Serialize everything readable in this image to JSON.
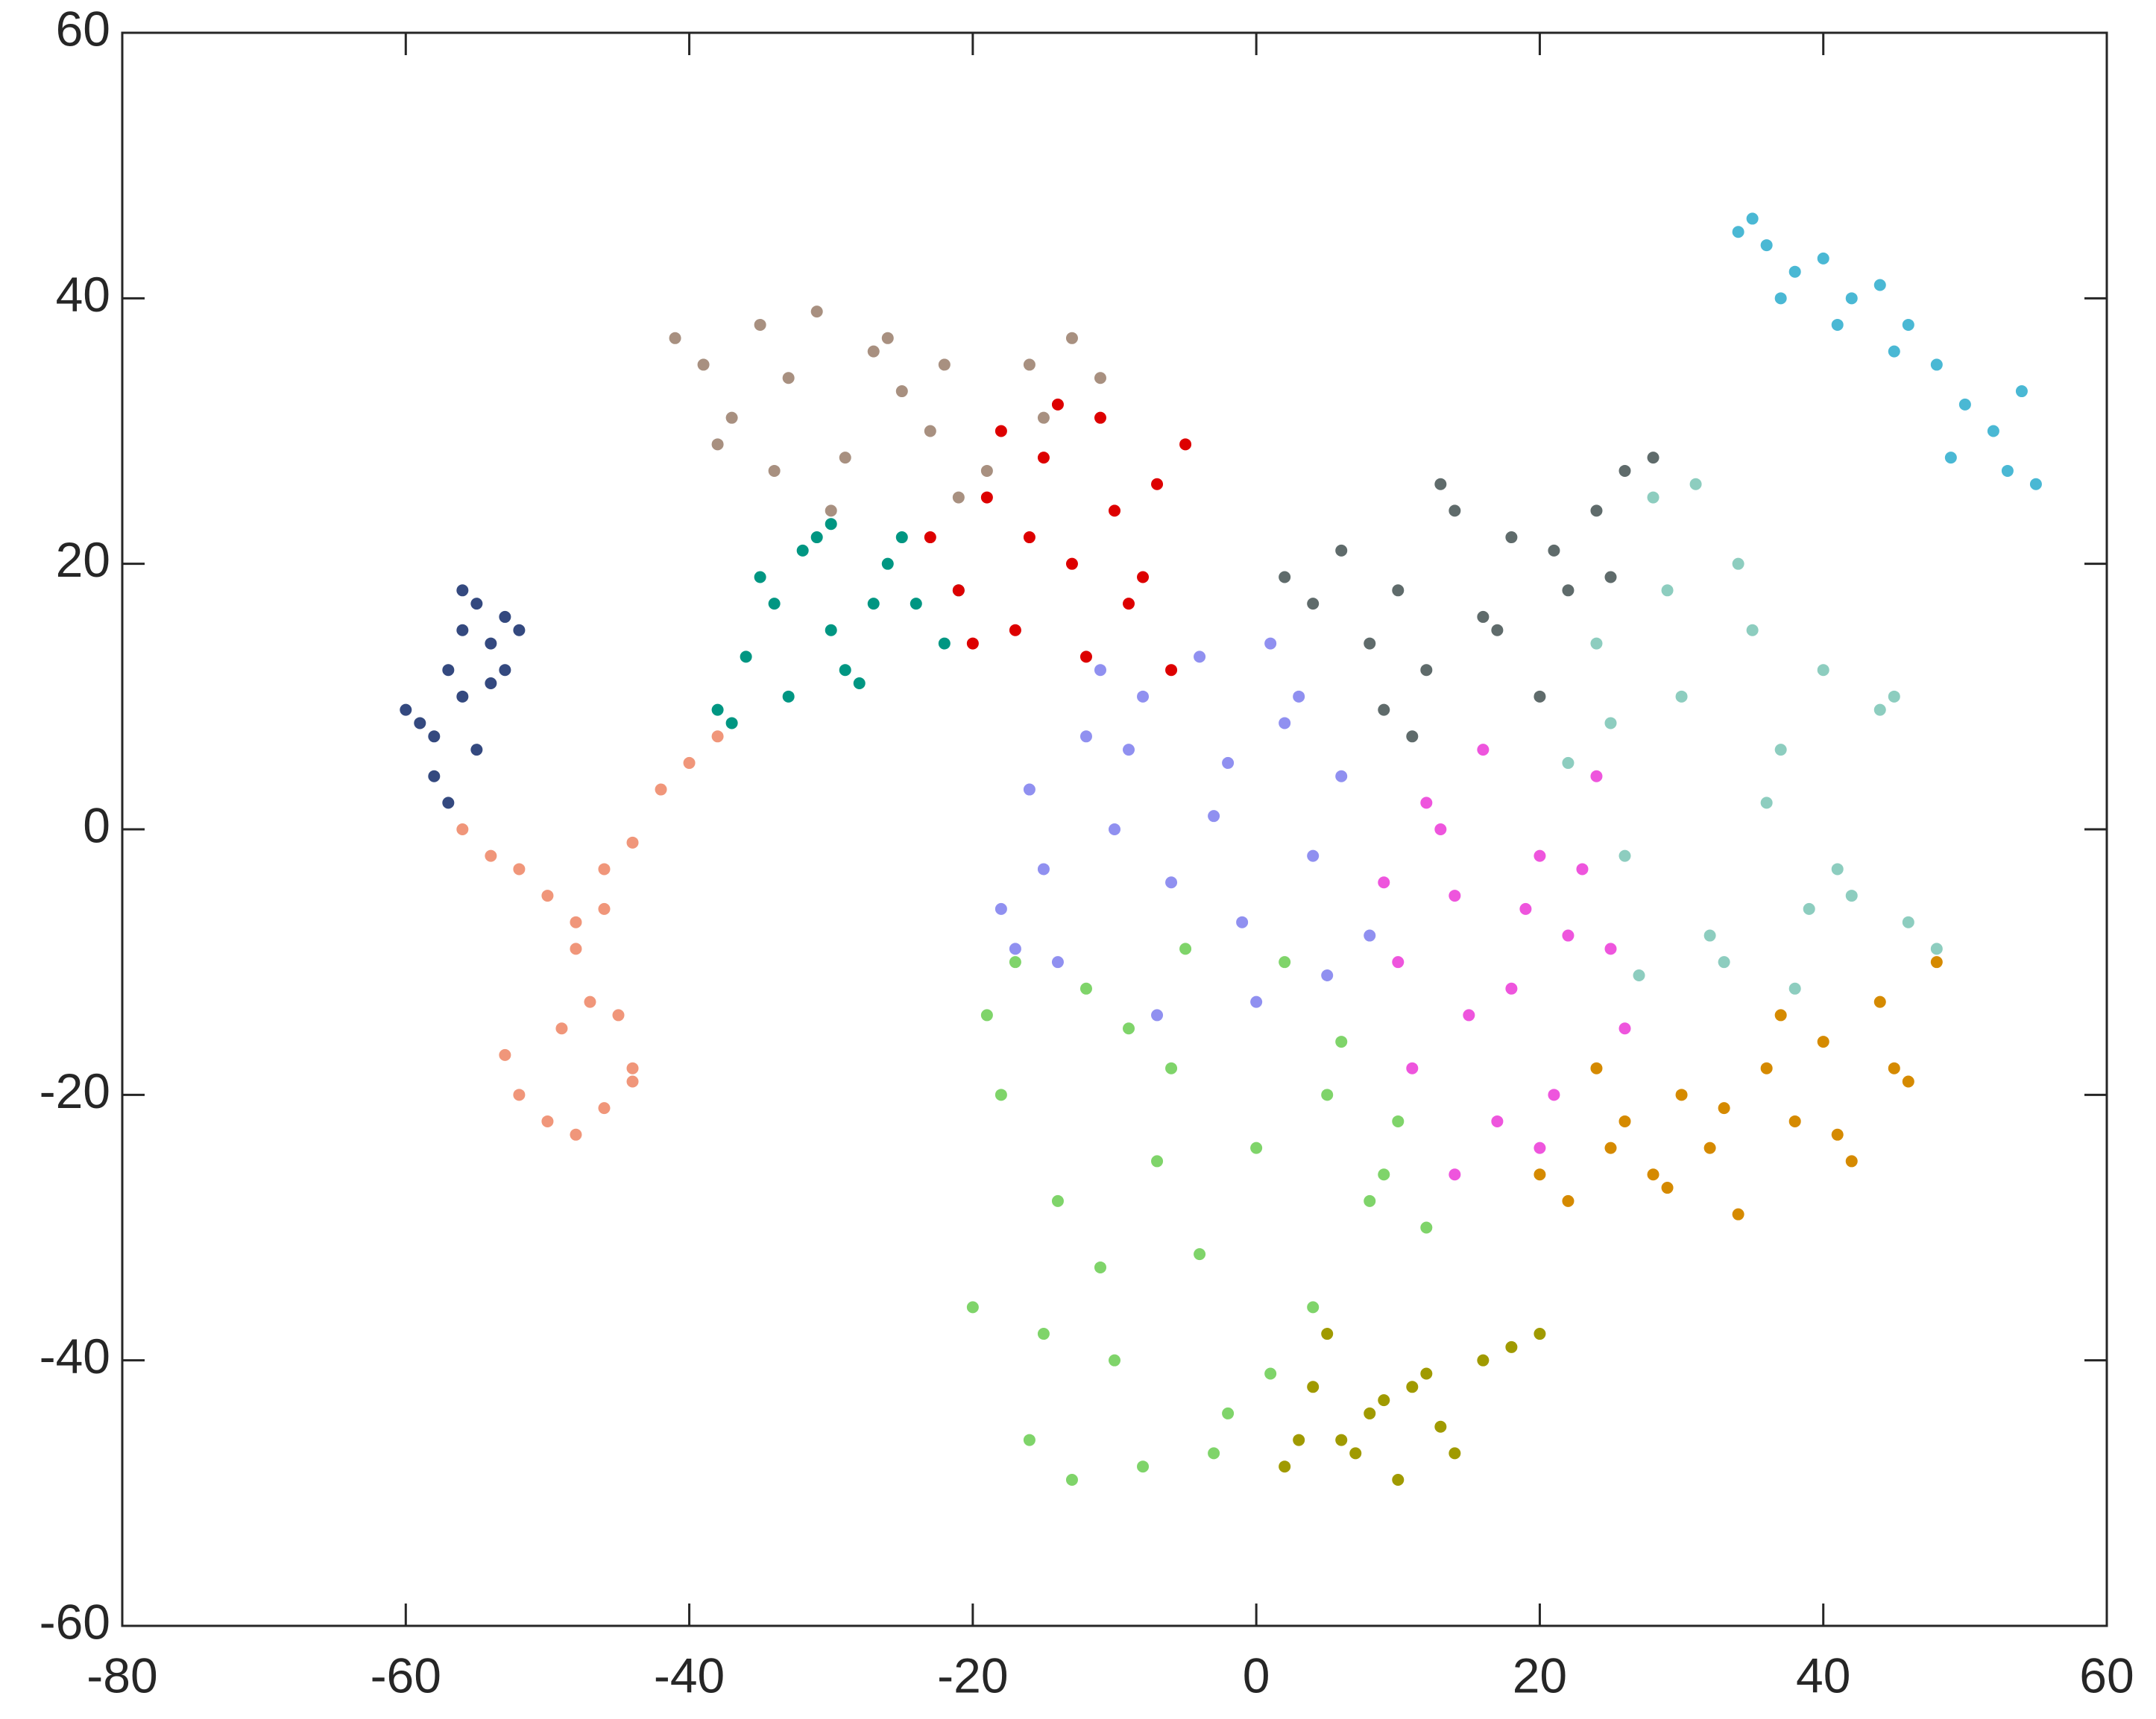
{
  "chart_data": {
    "type": "scatter",
    "xlim": [
      -80,
      60
    ],
    "ylim": [
      -60,
      60
    ],
    "xticks": [
      -80,
      -60,
      -40,
      -20,
      0,
      20,
      40,
      60
    ],
    "yticks": [
      -60,
      -40,
      -20,
      0,
      20,
      40,
      60
    ],
    "series": [
      {
        "color": "#34497f",
        "x": [
          -60,
          -58,
          -57,
          -56,
          -55,
          -54,
          -53,
          -52,
          -56,
          -58,
          -57,
          -55,
          -53,
          -59,
          -54,
          -56
        ],
        "values": [
          9,
          7,
          12,
          15,
          17,
          14,
          16,
          15,
          10,
          4,
          2,
          6,
          12,
          8,
          11,
          18
        ]
      },
      {
        "color": "#f0967a",
        "x": [
          -56,
          -54,
          -52,
          -50,
          -48,
          -46,
          -44,
          -42,
          -40,
          -38,
          -48,
          -46,
          -49,
          -47,
          -45,
          -44,
          -52,
          -50,
          -48,
          -46,
          -44,
          -53
        ],
        "values": [
          0,
          -2,
          -3,
          -5,
          -7,
          -3,
          -1,
          3,
          5,
          7,
          -9,
          -6,
          -15,
          -13,
          -14,
          -18,
          -20,
          -22,
          -23,
          -21,
          -19,
          -17
        ]
      },
      {
        "color": "#009682",
        "x": [
          -38,
          -36,
          -34,
          -32,
          -30,
          -28,
          -26,
          -24,
          -22,
          -35,
          -33,
          -31,
          -29,
          -27,
          -37,
          -25,
          -21,
          -30
        ],
        "values": [
          9,
          13,
          17,
          21,
          15,
          11,
          20,
          17,
          14,
          19,
          10,
          22,
          12,
          17,
          8,
          22,
          18,
          23
        ]
      },
      {
        "color": "#a89080",
        "x": [
          -41,
          -39,
          -37,
          -35,
          -33,
          -31,
          -29,
          -27,
          -25,
          -23,
          -21,
          -19,
          -16,
          -13,
          -11,
          -38,
          -34,
          -30,
          -26,
          -22,
          -15
        ],
        "values": [
          37,
          35,
          31,
          38,
          34,
          39,
          28,
          36,
          33,
          30,
          25,
          27,
          35,
          37,
          34,
          29,
          27,
          24,
          37,
          35,
          31
        ]
      },
      {
        "color": "#dd0000",
        "x": [
          -23,
          -21,
          -19,
          -17,
          -15,
          -13,
          -11,
          -9,
          -7,
          -5,
          -20,
          -18,
          -16,
          -12,
          -10,
          -8,
          -6,
          -14
        ],
        "values": [
          22,
          18,
          25,
          15,
          28,
          20,
          31,
          17,
          26,
          29,
          14,
          30,
          22,
          13,
          24,
          19,
          12,
          32
        ]
      },
      {
        "color": "#9090f0",
        "x": [
          -18,
          -16,
          -14,
          -12,
          -10,
          -8,
          -6,
          -4,
          -2,
          0,
          2,
          4,
          6,
          8,
          -15,
          -11,
          -7,
          -3,
          1,
          5,
          -17,
          -9,
          -1,
          3
        ],
        "values": [
          -6,
          3,
          -10,
          7,
          0,
          10,
          -4,
          13,
          5,
          -13,
          8,
          -2,
          4,
          -8,
          -3,
          12,
          -14,
          1,
          14,
          -11,
          -9,
          6,
          -7,
          10
        ]
      },
      {
        "color": "#7fd46a",
        "x": [
          -20,
          -18,
          -16,
          -14,
          -12,
          -10,
          -8,
          -6,
          -4,
          -2,
          0,
          2,
          4,
          6,
          8,
          10,
          12,
          -19,
          -15,
          -11,
          -7,
          -3,
          1,
          5,
          9,
          -17,
          -13,
          -9,
          -5
        ],
        "values": [
          -36,
          -20,
          -46,
          -28,
          -12,
          -40,
          -48,
          -18,
          -32,
          -44,
          -24,
          -10,
          -36,
          -16,
          -28,
          -22,
          -30,
          -14,
          -38,
          -33,
          -25,
          -47,
          -41,
          -20,
          -26,
          -10,
          -49,
          -15,
          -9
        ]
      },
      {
        "color": "#a09a00",
        "x": [
          2,
          4,
          6,
          8,
          10,
          12,
          14,
          16,
          18,
          20,
          5,
          9,
          13,
          7,
          11,
          3
        ],
        "values": [
          -48,
          -42,
          -46,
          -44,
          -49,
          -41,
          -47,
          -40,
          -39,
          -38,
          -38,
          -43,
          -45,
          -47,
          -42,
          -46
        ]
      },
      {
        "color": "#ee55dd",
        "x": [
          10,
          12,
          14,
          16,
          18,
          20,
          22,
          24,
          26,
          11,
          13,
          15,
          17,
          19,
          21,
          23,
          25,
          9,
          14,
          20
        ],
        "values": [
          -10,
          2,
          -5,
          6,
          -12,
          -2,
          -8,
          4,
          -15,
          -18,
          0,
          -14,
          -22,
          -6,
          -20,
          -3,
          -9,
          -4,
          -26,
          -24
        ]
      },
      {
        "color": "#5f6b6b",
        "x": [
          2,
          4,
          6,
          8,
          10,
          12,
          14,
          16,
          18,
          20,
          22,
          24,
          26,
          28,
          9,
          13,
          17,
          21,
          25,
          11
        ],
        "values": [
          19,
          17,
          21,
          14,
          18,
          12,
          24,
          16,
          22,
          10,
          18,
          24,
          27,
          28,
          9,
          26,
          15,
          21,
          19,
          7
        ]
      },
      {
        "color": "#8dcdbf",
        "x": [
          22,
          24,
          26,
          28,
          30,
          32,
          34,
          36,
          38,
          40,
          42,
          44,
          46,
          48,
          25,
          29,
          33,
          37,
          41,
          45,
          27,
          31,
          35,
          39
        ],
        "values": [
          5,
          14,
          -2,
          25,
          10,
          -8,
          20,
          2,
          -12,
          12,
          -5,
          9,
          -7,
          -9,
          8,
          18,
          -10,
          6,
          -3,
          10,
          -11,
          26,
          15,
          -6
        ]
      },
      {
        "color": "#d58a00",
        "x": [
          20,
          22,
          24,
          26,
          28,
          30,
          32,
          34,
          36,
          38,
          40,
          42,
          44,
          46,
          48,
          29,
          33,
          37,
          41,
          45,
          25
        ],
        "values": [
          -26,
          -28,
          -18,
          -22,
          -26,
          -20,
          -24,
          -29,
          -18,
          -22,
          -16,
          -25,
          -13,
          -19,
          -10,
          -27,
          -21,
          -14,
          -23,
          -18,
          -24
        ]
      },
      {
        "color": "#4ab8d4",
        "x": [
          34,
          36,
          38,
          40,
          42,
          44,
          46,
          48,
          50,
          52,
          54,
          55,
          37,
          41,
          45,
          49,
          53,
          35
        ],
        "values": [
          45,
          44,
          42,
          43,
          40,
          41,
          38,
          35,
          32,
          30,
          33,
          26,
          40,
          38,
          36,
          28,
          27,
          46
        ]
      }
    ]
  }
}
